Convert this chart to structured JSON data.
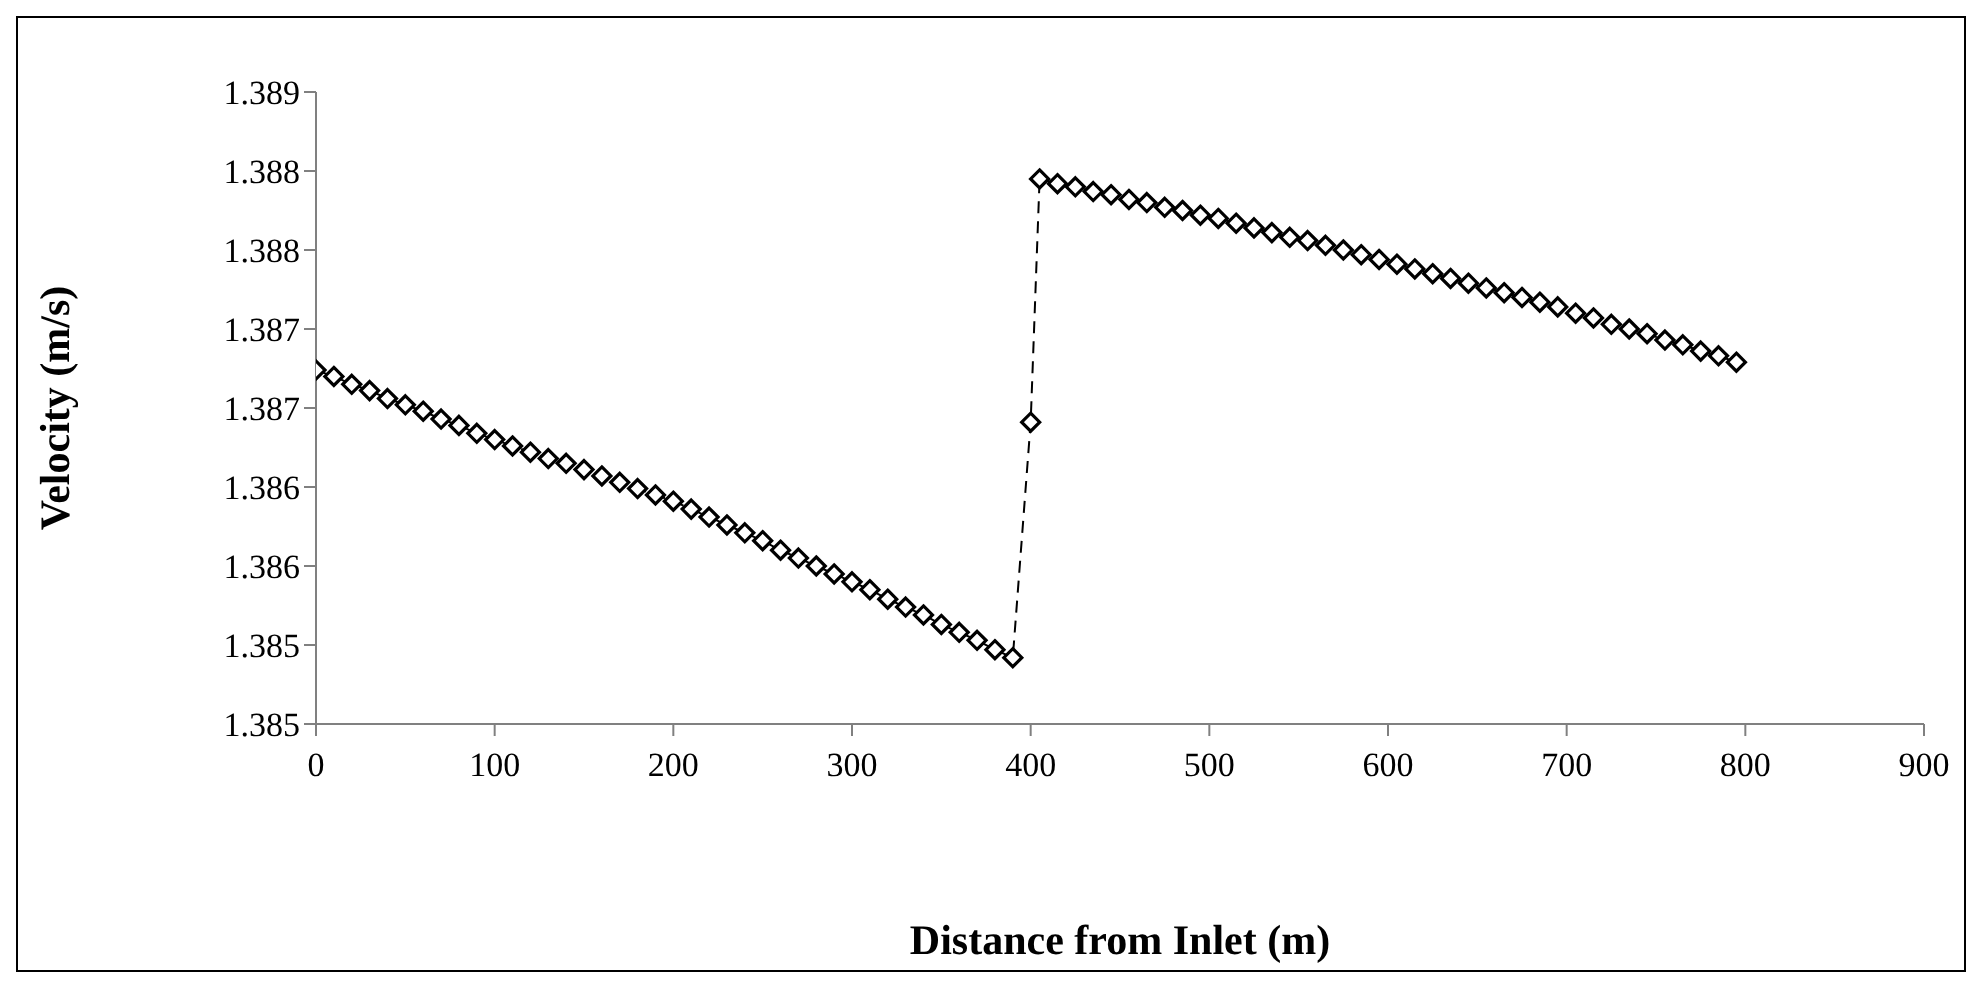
{
  "chart_data": {
    "type": "line",
    "xlabel": "Distance from Inlet (m)",
    "ylabel": "Velocity (m/s)",
    "x": [
      0,
      10,
      20,
      30,
      40,
      50,
      60,
      70,
      80,
      90,
      100,
      110,
      120,
      130,
      140,
      150,
      160,
      170,
      180,
      190,
      200,
      210,
      220,
      230,
      240,
      250,
      260,
      270,
      280,
      290,
      300,
      310,
      320,
      330,
      340,
      350,
      360,
      370,
      380,
      390,
      400,
      405,
      415,
      425,
      435,
      445,
      455,
      465,
      475,
      485,
      495,
      505,
      515,
      525,
      535,
      545,
      555,
      565,
      575,
      585,
      595,
      605,
      615,
      625,
      635,
      645,
      655,
      665,
      675,
      685,
      695,
      705,
      715,
      725,
      735,
      745,
      755,
      765,
      775,
      785,
      795
    ],
    "series": [
      {
        "color": "#000000",
        "values": [
          1.38724,
          1.3872,
          1.38715,
          1.38711,
          1.38706,
          1.38702,
          1.38698,
          1.38693,
          1.38689,
          1.38684,
          1.3868,
          1.38676,
          1.38672,
          1.38668,
          1.38665,
          1.38661,
          1.38657,
          1.38653,
          1.38649,
          1.38645,
          1.38641,
          1.38636,
          1.38631,
          1.38626,
          1.38621,
          1.38616,
          1.3861,
          1.38605,
          1.386,
          1.38595,
          1.3859,
          1.38585,
          1.38579,
          1.38574,
          1.38569,
          1.38563,
          1.38558,
          1.38553,
          1.38547,
          1.38542,
          1.38691,
          1.38845,
          1.38842,
          1.3884,
          1.38837,
          1.38835,
          1.38832,
          1.3883,
          1.38827,
          1.38825,
          1.38822,
          1.3882,
          1.38817,
          1.38814,
          1.38811,
          1.38808,
          1.38806,
          1.38803,
          1.388,
          1.38797,
          1.38794,
          1.38791,
          1.38788,
          1.38785,
          1.38782,
          1.38779,
          1.38776,
          1.38773,
          1.3877,
          1.38767,
          1.38764,
          1.3876,
          1.38757,
          1.38753,
          1.3875,
          1.38747,
          1.38743,
          1.3874,
          1.38736,
          1.38733,
          1.38729
        ]
      }
    ],
    "xlim": [
      0,
      900
    ],
    "xticks": [
      0,
      100,
      200,
      300,
      400,
      500,
      600,
      700,
      800,
      900
    ],
    "ylim": [
      1.385,
      1.389
    ],
    "yticks": [
      {
        "value": 1.385,
        "label": "1.385"
      },
      {
        "value": 1.3855,
        "label": "1.385"
      },
      {
        "value": 1.386,
        "label": "1.386"
      },
      {
        "value": 1.3865,
        "label": "1.386"
      },
      {
        "value": 1.387,
        "label": "1.387"
      },
      {
        "value": 1.3875,
        "label": "1.387"
      },
      {
        "value": 1.388,
        "label": "1.388"
      },
      {
        "value": 1.3885,
        "label": "1.388"
      },
      {
        "value": 1.389,
        "label": "1.389"
      }
    ],
    "grid": false,
    "legend": false,
    "marker": "diamond",
    "line_style": "dashed"
  }
}
